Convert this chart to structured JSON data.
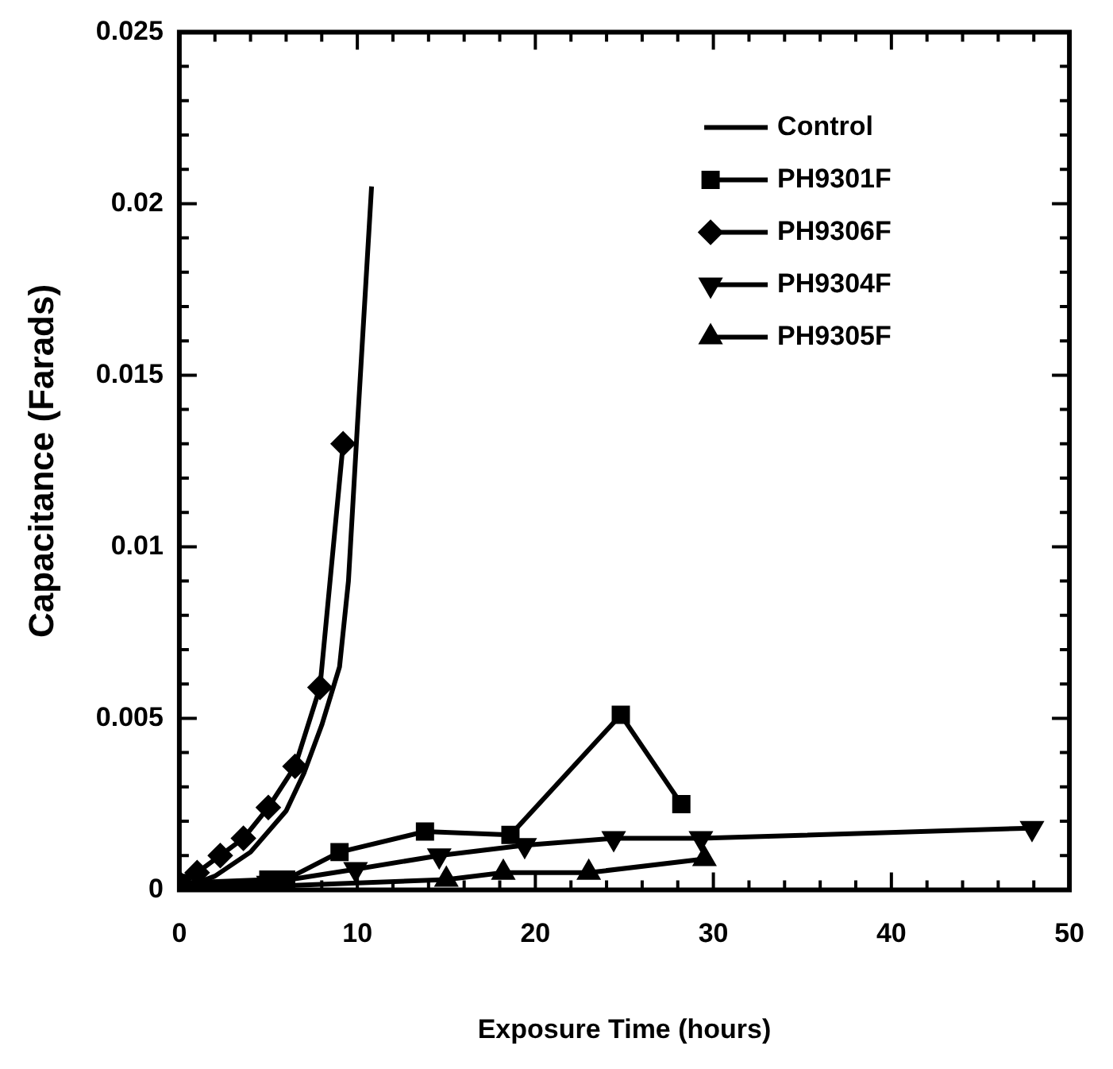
{
  "chart_data": {
    "type": "line",
    "xlabel": "Exposure Time (hours)",
    "ylabel": "Capacitance (Farads)",
    "xlim": [
      0,
      50
    ],
    "ylim": [
      0,
      0.025
    ],
    "xticks": [
      0,
      {
        "value": 2,
        "label": null
      },
      {
        "value": 4,
        "label": null
      },
      {
        "value": 6,
        "label": null
      },
      {
        "value": 8,
        "label": null
      },
      10,
      {
        "value": 12,
        "label": null
      },
      {
        "value": 14,
        "label": null
      },
      {
        "value": 16,
        "label": null
      },
      {
        "value": 18,
        "label": null
      },
      20,
      {
        "value": 22,
        "label": null
      },
      {
        "value": 24,
        "label": null
      },
      {
        "value": 26,
        "label": null
      },
      {
        "value": 28,
        "label": null
      },
      30,
      {
        "value": 32,
        "label": null
      },
      {
        "value": 34,
        "label": null
      },
      {
        "value": 36,
        "label": null
      },
      {
        "value": 38,
        "label": null
      },
      40,
      {
        "value": 42,
        "label": null
      },
      {
        "value": 44,
        "label": null
      },
      {
        "value": 46,
        "label": null
      },
      {
        "value": 48,
        "label": null
      },
      50
    ],
    "yticks": [
      0,
      {
        "value": 0.001,
        "label": null
      },
      {
        "value": 0.002,
        "label": null
      },
      {
        "value": 0.003,
        "label": null
      },
      {
        "value": 0.004,
        "label": null
      },
      0.005,
      {
        "value": 0.006,
        "label": null
      },
      {
        "value": 0.007,
        "label": null
      },
      {
        "value": 0.008,
        "label": null
      },
      {
        "value": 0.009,
        "label": null
      },
      0.01,
      {
        "value": 0.011,
        "label": null
      },
      {
        "value": 0.012,
        "label": null
      },
      {
        "value": 0.013,
        "label": null
      },
      {
        "value": 0.014,
        "label": null
      },
      0.015,
      {
        "value": 0.016,
        "label": null
      },
      {
        "value": 0.017,
        "label": null
      },
      {
        "value": 0.018,
        "label": null
      },
      {
        "value": 0.019,
        "label": null
      },
      0.02,
      {
        "value": 0.021,
        "label": null
      },
      {
        "value": 0.022,
        "label": null
      },
      {
        "value": 0.023,
        "label": null
      },
      {
        "value": 0.024,
        "label": null
      },
      0.025
    ],
    "grid": false,
    "legend": "top right",
    "line_style": "solid",
    "series": [
      {
        "name": "Control",
        "color": "#000000",
        "marker": "none",
        "x": [
          0,
          2,
          4,
          6,
          7,
          8,
          9,
          9.5,
          10,
          10.8
        ],
        "values": [
          0,
          0.0004,
          0.0011,
          0.0023,
          0.0034,
          0.0048,
          0.0065,
          0.009,
          0.0135,
          0.0205
        ]
      },
      {
        "name": "PH9301F",
        "color": "#000000",
        "marker": "square",
        "x": [
          0,
          5,
          6,
          9,
          13.8,
          18.6,
          24.8,
          28.2
        ],
        "values": [
          0.0002,
          0.0003,
          0.0003,
          0.0011,
          0.0017,
          0.0016,
          0.0051,
          0.0025
        ]
      },
      {
        "name": "PH9306F",
        "color": "#000000",
        "marker": "diamond",
        "x": [
          0,
          1,
          2.3,
          3.6,
          5,
          6.5,
          7.9,
          9.2
        ],
        "values": [
          0.0002,
          0.0005,
          0.001,
          0.0015,
          0.0024,
          0.0036,
          0.0059,
          0.013
        ]
      },
      {
        "name": "PH9304F",
        "color": "#000000",
        "marker": "triangle_down",
        "x": [
          0,
          5,
          9.9,
          14.6,
          19.4,
          24.4,
          29.3,
          47.9
        ],
        "values": [
          0.0001,
          0.0002,
          0.0006,
          0.001,
          0.0013,
          0.0015,
          0.0015,
          0.0018
        ]
      },
      {
        "name": "PH9305F",
        "color": "#000000",
        "marker": "triangle",
        "x": [
          0,
          5,
          10,
          15,
          18.2,
          23,
          29.5
        ],
        "values": [
          0.0001,
          0.0001,
          null,
          0.0003,
          0.0005,
          0.0005,
          0.0009
        ]
      }
    ]
  }
}
